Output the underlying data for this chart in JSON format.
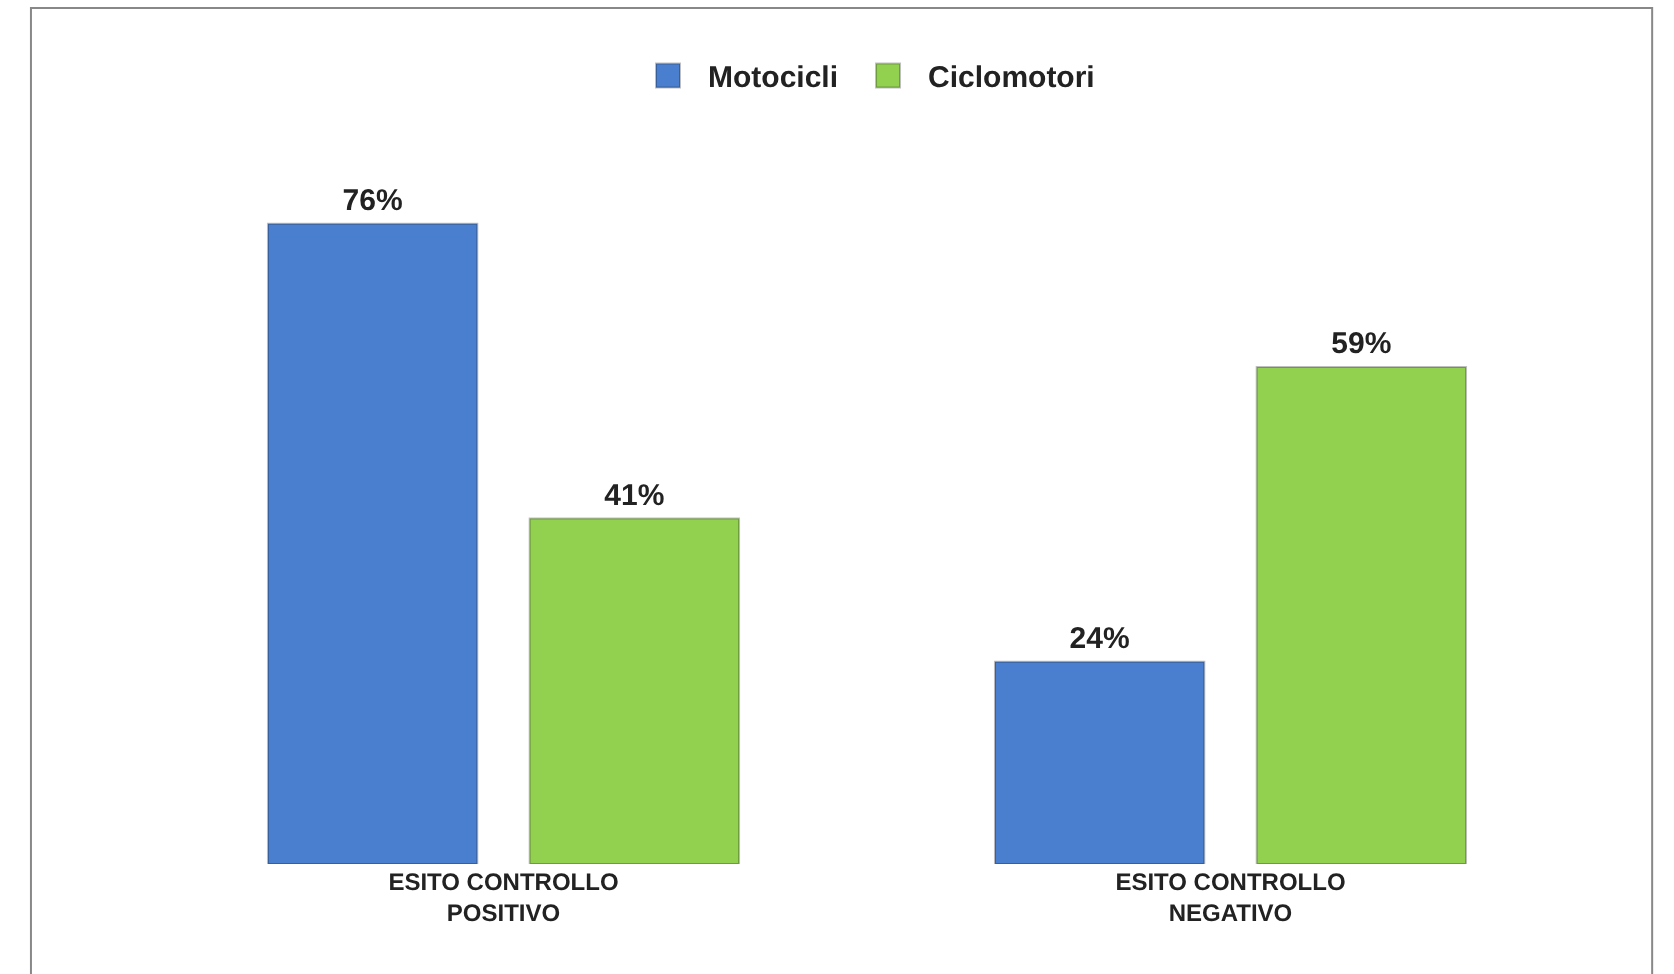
{
  "chart_data": {
    "type": "bar",
    "categories": [
      "ESITO CONTROLLO\nPOSITIVO",
      "ESITO CONTROLLO\nNEGATIVO"
    ],
    "series": [
      {
        "name": "Motocicli",
        "color": "#4a7fcf",
        "values": [
          76,
          24
        ],
        "value_labels": [
          "76%",
          "24%"
        ]
      },
      {
        "name": "Ciclomotori",
        "color": "#92d050",
        "values": [
          41,
          59
        ],
        "value_labels": [
          "41%",
          "59%"
        ]
      }
    ],
    "legend": "top"
  }
}
